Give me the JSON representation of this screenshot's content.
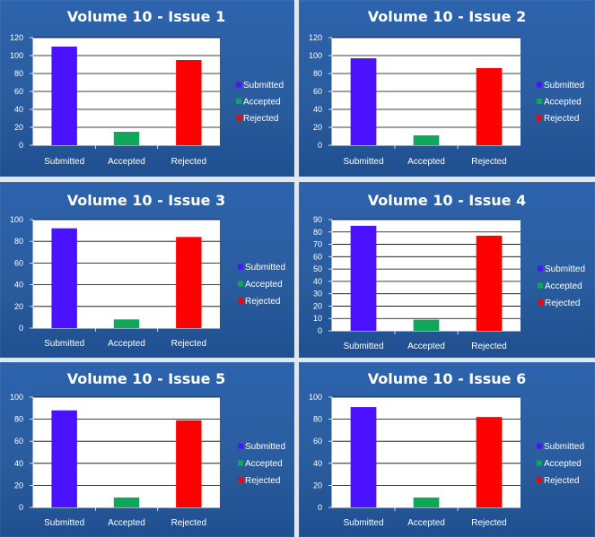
{
  "colors": {
    "submitted": "#4b12ff",
    "accepted": "#0fa85a",
    "rejected": "#ff0000",
    "plot_bg": "#ffffff",
    "panel_bg": "#2a5d9f"
  },
  "legend": [
    "Submitted",
    "Accepted",
    "Rejected"
  ],
  "chart_data": [
    {
      "type": "bar",
      "title": "Volume 10 - Issue 1",
      "categories": [
        "Submitted",
        "Accepted",
        "Rejected"
      ],
      "values": [
        110,
        15,
        95
      ],
      "ylim": [
        0,
        120
      ],
      "yticks": [
        0,
        20,
        40,
        60,
        80,
        100,
        120
      ],
      "grid": true,
      "legend": "right"
    },
    {
      "type": "bar",
      "title": "Volume 10 - Issue 2",
      "categories": [
        "Submitted",
        "Accepted",
        "Rejected"
      ],
      "values": [
        97,
        11,
        86
      ],
      "ylim": [
        0,
        120
      ],
      "yticks": [
        0,
        20,
        40,
        60,
        80,
        100,
        120
      ],
      "grid": true,
      "legend": "right"
    },
    {
      "type": "bar",
      "title": "Volume 10 - Issue 3",
      "categories": [
        "Submitted",
        "Accepted",
        "Rejected"
      ],
      "values": [
        92,
        8,
        84
      ],
      "ylim": [
        0,
        100
      ],
      "yticks": [
        0,
        20,
        40,
        60,
        80,
        100
      ],
      "grid": true,
      "legend": "right"
    },
    {
      "type": "bar",
      "title": "Volume 10 - Issue 4",
      "categories": [
        "Submitted",
        "Accepted",
        "Rejected"
      ],
      "values": [
        85,
        9,
        77
      ],
      "ylim": [
        0,
        90
      ],
      "yticks": [
        0,
        10,
        20,
        30,
        40,
        50,
        60,
        70,
        80,
        90
      ],
      "grid": true,
      "legend": "right"
    },
    {
      "type": "bar",
      "title": "Volume 10 - Issue 5",
      "categories": [
        "Submitted",
        "Accepted",
        "Rejected"
      ],
      "values": [
        88,
        9,
        79
      ],
      "ylim": [
        0,
        100
      ],
      "yticks": [
        0,
        20,
        40,
        60,
        80,
        100
      ],
      "grid": true,
      "legend": "right"
    },
    {
      "type": "bar",
      "title": "Volume 10 - Issue 6",
      "categories": [
        "Submitted",
        "Accepted",
        "Rejected"
      ],
      "values": [
        91,
        9,
        82
      ],
      "ylim": [
        0,
        100
      ],
      "yticks": [
        0,
        20,
        40,
        60,
        80,
        100
      ],
      "grid": true,
      "legend": "right"
    }
  ]
}
